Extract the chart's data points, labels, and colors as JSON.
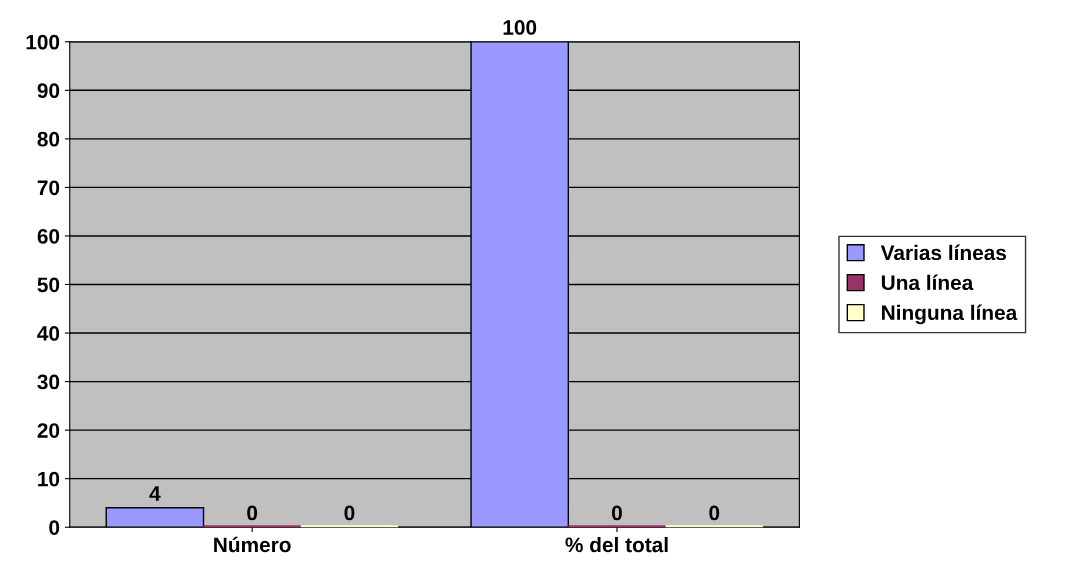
{
  "chart_data": {
    "type": "bar",
    "categories": [
      "Número",
      "% del total"
    ],
    "series": [
      {
        "name": "Varias líneas",
        "color": "#9999ff",
        "values": [
          4,
          100
        ]
      },
      {
        "name": "Una línea",
        "color": "#993366",
        "values": [
          0,
          0
        ]
      },
      {
        "name": "Ninguna línea",
        "color": "#ffffcc",
        "values": [
          0,
          0
        ]
      }
    ],
    "ylim": [
      0,
      100
    ],
    "yticks": [
      0,
      10,
      20,
      30,
      40,
      50,
      60,
      70,
      80,
      90,
      100
    ],
    "grid": "y",
    "legend": "right",
    "data_labels": true
  }
}
